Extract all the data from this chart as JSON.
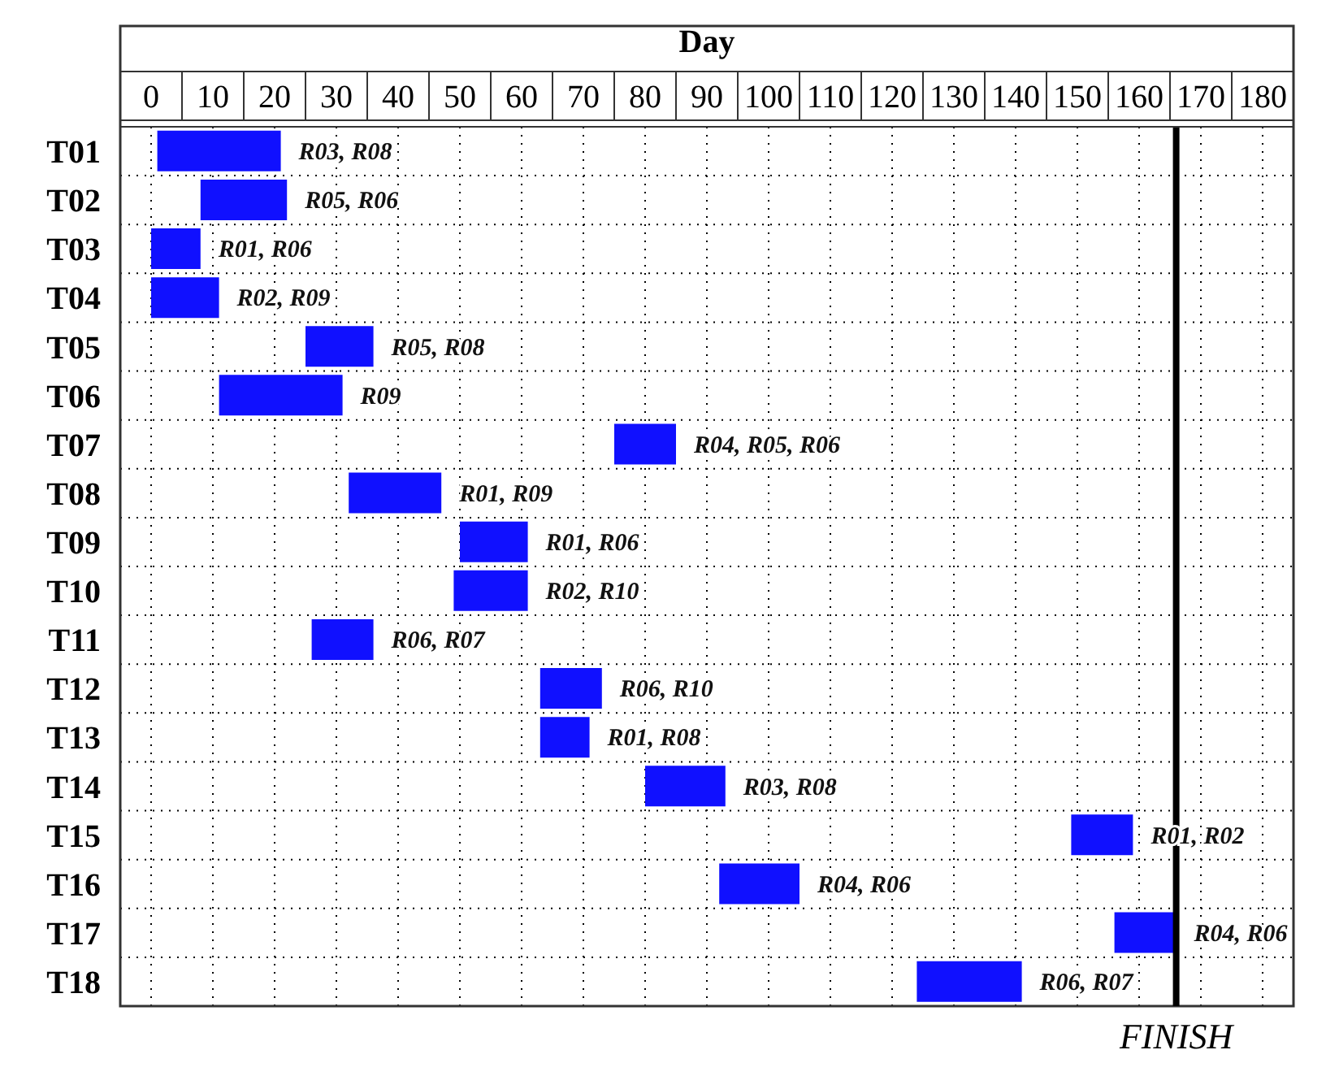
{
  "chart_data": {
    "type": "bar",
    "orientation": "horizontal",
    "xlabel": "Day",
    "categories": [
      "T01",
      "T02",
      "T03",
      "T04",
      "T05",
      "T06",
      "T07",
      "T08",
      "T09",
      "T10",
      "T11",
      "T12",
      "T13",
      "T14",
      "T15",
      "T16",
      "T17",
      "T18"
    ],
    "base": [
      1,
      8,
      0,
      0,
      25,
      11,
      75,
      32,
      50,
      49,
      26,
      63,
      63,
      80,
      149,
      92,
      156,
      124
    ],
    "values": [
      20,
      14,
      8,
      11,
      11,
      20,
      10,
      15,
      11,
      12,
      10,
      10,
      8,
      13,
      10,
      13,
      10,
      17
    ],
    "color": "#1010ff",
    "xlim": [
      -5,
      185
    ],
    "xticks": [
      0,
      10,
      20,
      30,
      40,
      50,
      60,
      70,
      80,
      90,
      100,
      110,
      120,
      130,
      140,
      150,
      160,
      170,
      180
    ],
    "grid": true,
    "ref_lines": [
      {
        "axis": "x",
        "value": 166,
        "label": "FINISH",
        "color": "#000000"
      }
    ],
    "annotations": [
      {
        "text": "R03, R08",
        "x": 21,
        "y": "T01"
      },
      {
        "text": "R05, R06",
        "x": 22,
        "y": "T02"
      },
      {
        "text": "R01, R06",
        "x": 8,
        "y": "T03"
      },
      {
        "text": "R02, R09",
        "x": 11,
        "y": "T04"
      },
      {
        "text": "R05, R08",
        "x": 36,
        "y": "T05"
      },
      {
        "text": "R09",
        "x": 31,
        "y": "T06"
      },
      {
        "text": "R04, R05, R06",
        "x": 85,
        "y": "T07"
      },
      {
        "text": "R01, R09",
        "x": 47,
        "y": "T08"
      },
      {
        "text": "R01, R06",
        "x": 61,
        "y": "T09"
      },
      {
        "text": "R02, R10",
        "x": 61,
        "y": "T10"
      },
      {
        "text": "R06, R07",
        "x": 36,
        "y": "T11"
      },
      {
        "text": "R06, R10",
        "x": 73,
        "y": "T12"
      },
      {
        "text": "R01, R08",
        "x": 71,
        "y": "T13"
      },
      {
        "text": "R03, R08",
        "x": 93,
        "y": "T14"
      },
      {
        "text": "R01, R02",
        "x": 159,
        "y": "T15"
      },
      {
        "text": "R04, R06",
        "x": 105,
        "y": "T16"
      },
      {
        "text": "R04, R06",
        "x": 166,
        "y": "T17"
      },
      {
        "text": "R06, R07",
        "x": 141,
        "y": "T18"
      }
    ]
  }
}
